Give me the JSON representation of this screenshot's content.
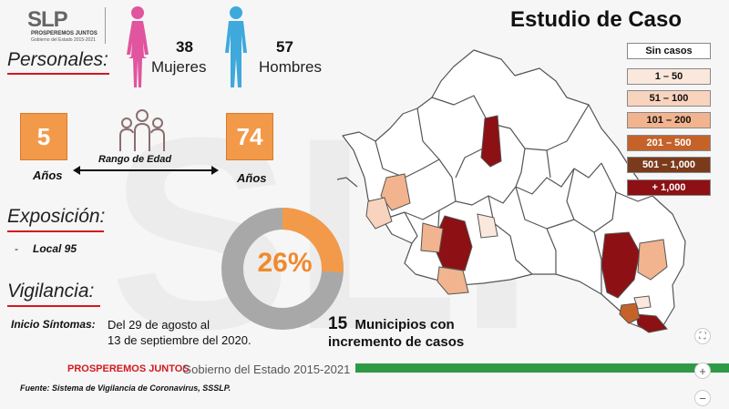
{
  "logo": {
    "main": "SLP",
    "tagline": "PROSPEREMOS JUNTOS",
    "sub": "Gobierno del Estado 2015-2021"
  },
  "title": "Estudio de Caso",
  "personales": {
    "heading": "Personales:",
    "women": {
      "count": "38",
      "label": "Mujeres"
    },
    "men": {
      "count": "57",
      "label": "Hombres"
    }
  },
  "age": {
    "min": "5",
    "max": "74",
    "unit_left": "Años",
    "unit_right": "Años",
    "range_label": "Rango de Edad"
  },
  "exposicion": {
    "heading": "Exposición:",
    "bullet": "-",
    "item": "Local 95"
  },
  "donut": {
    "label": "26%",
    "percent": 26,
    "colors": {
      "fill": "#f39a4a",
      "rest": "#a8a8a8"
    }
  },
  "vigilancia": {
    "heading": "Vigilancia:",
    "inicio_label": "Inicio Síntomas:",
    "inicio_line1": "Del 29 de agosto al",
    "inicio_line2": "13 de septiembre del 2020."
  },
  "map_note": {
    "number": "15",
    "line1": "Municipios con",
    "line2": "incremento de casos"
  },
  "legend": [
    {
      "label": "Sin casos",
      "color": "#ffffff",
      "text": "#111"
    },
    {
      "label": "1 – 50",
      "color": "#fbe8dc",
      "text": "#111"
    },
    {
      "label": "51 – 100",
      "color": "#f8d3bd",
      "text": "#111"
    },
    {
      "label": "101 – 200",
      "color": "#f1b48e",
      "text": "#111"
    },
    {
      "label": "201 – 500",
      "color": "#c5622a",
      "text": "#ffffff"
    },
    {
      "label": "501 – 1,000",
      "color": "#7a3a1c",
      "text": "#ffffff"
    },
    {
      "label": "+ 1,000",
      "color": "#8c1014",
      "text": "#ffffff"
    }
  ],
  "footer": {
    "brand": "PROSPEREMOS JUNTOS",
    "gov": "Gobierno del Estado 2015-2021",
    "source": "Fuente: Sistema de Vigilancia de Coronavirus, SSSLP."
  },
  "controls": {
    "fit": "⛶",
    "zoom_in": "+",
    "zoom_out": "−"
  },
  "colors": {
    "accent_red": "#d4181f",
    "orange": "#f39a4a",
    "pink": "#e0559e",
    "blue": "#3fa9dc",
    "green": "#2f9a46"
  }
}
